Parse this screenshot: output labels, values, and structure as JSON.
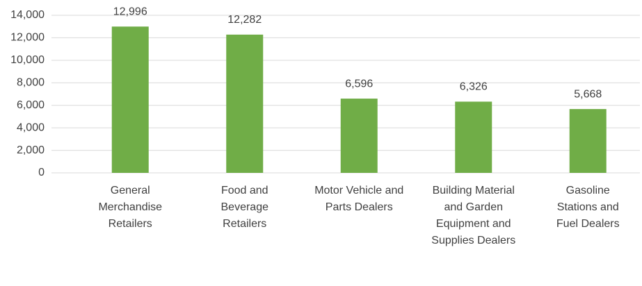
{
  "chart_data": {
    "type": "bar",
    "categories": [
      "General Merchandise Retailers",
      "Food and Beverage Retailers",
      "Motor Vehicle and Parts Dealers",
      "Building Material and Garden Equipment and Supplies Dealers",
      "Gasoline Stations and Fuel Dealers"
    ],
    "values": [
      12996,
      12282,
      6596,
      6326,
      5668
    ],
    "value_labels": [
      "12,996",
      "12,282",
      "6,596",
      "6,326",
      "5,668"
    ],
    "color": "#70ad47",
    "ylim": [
      0,
      14000
    ],
    "yticks": [
      0,
      {
        "value": 2000,
        "label": "2,000"
      },
      {
        "value": 4000,
        "label": "4,000"
      },
      {
        "value": 6000,
        "label": "6,000"
      },
      {
        "value": 8000,
        "label": "8,000"
      },
      {
        "value": 10000,
        "label": "10,000"
      },
      {
        "value": 12000,
        "label": "12,000"
      },
      {
        "value": 14000,
        "label": "14,000"
      }
    ],
    "grid": true
  }
}
